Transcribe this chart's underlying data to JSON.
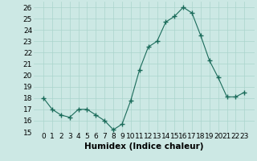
{
  "x": [
    0,
    1,
    2,
    3,
    4,
    5,
    6,
    7,
    8,
    9,
    10,
    11,
    12,
    13,
    14,
    15,
    16,
    17,
    18,
    19,
    20,
    21,
    22,
    23
  ],
  "y": [
    18,
    17,
    16.5,
    16.3,
    17,
    17,
    16.5,
    16,
    15.2,
    15.7,
    17.8,
    20.5,
    22.5,
    23,
    24.7,
    25.2,
    26,
    25.5,
    23.5,
    21.3,
    19.8,
    18.1,
    18.1,
    18.5
  ],
  "line_color": "#1a6b5a",
  "marker": "+",
  "marker_size": 4,
  "marker_lw": 1.0,
  "bg_color": "#cce8e4",
  "grid_color": "#aad4cc",
  "xlabel": "Humidex (Indice chaleur)",
  "ylim": [
    15,
    26.5
  ],
  "yticks": [
    15,
    16,
    17,
    18,
    19,
    20,
    21,
    22,
    23,
    24,
    25,
    26
  ],
  "xticks": [
    0,
    1,
    2,
    3,
    4,
    5,
    6,
    7,
    8,
    9,
    10,
    11,
    12,
    13,
    14,
    15,
    16,
    17,
    18,
    19,
    20,
    21,
    22,
    23
  ],
  "xlabel_fontsize": 7.5,
  "tick_fontsize": 6.5
}
